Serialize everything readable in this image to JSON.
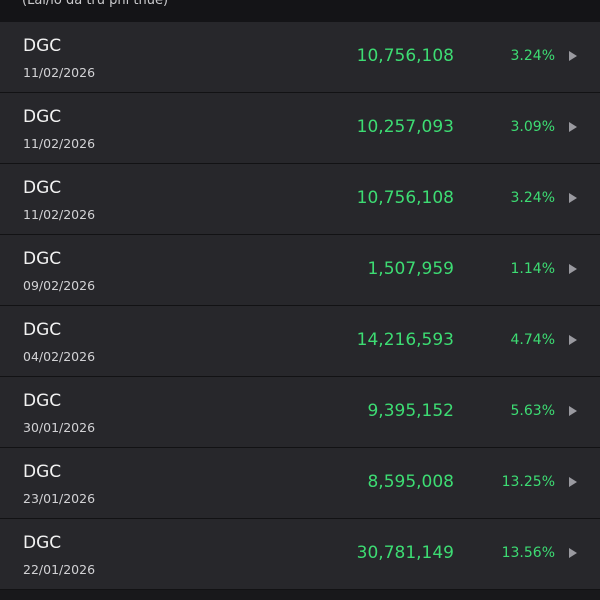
{
  "header": {
    "subtitle": "(Lãi/lỗ đã trừ phí thuế)"
  },
  "colors": {
    "gain": "#3ddc73",
    "row_bg": "#27272b",
    "divider": "#121214"
  },
  "rows": [
    {
      "ticker": "DGC",
      "date": "11/02/2026",
      "amount": "10,756,108",
      "percent": "3.24%"
    },
    {
      "ticker": "DGC",
      "date": "11/02/2026",
      "amount": "10,257,093",
      "percent": "3.09%"
    },
    {
      "ticker": "DGC",
      "date": "11/02/2026",
      "amount": "10,756,108",
      "percent": "3.24%"
    },
    {
      "ticker": "DGC",
      "date": "09/02/2026",
      "amount": "1,507,959",
      "percent": "1.14%"
    },
    {
      "ticker": "DGC",
      "date": "04/02/2026",
      "amount": "14,216,593",
      "percent": "4.74%"
    },
    {
      "ticker": "DGC",
      "date": "30/01/2026",
      "amount": "9,395,152",
      "percent": "5.63%"
    },
    {
      "ticker": "DGC",
      "date": "23/01/2026",
      "amount": "8,595,008",
      "percent": "13.25%"
    },
    {
      "ticker": "DGC",
      "date": "22/01/2026",
      "amount": "30,781,149",
      "percent": "13.56%"
    }
  ]
}
